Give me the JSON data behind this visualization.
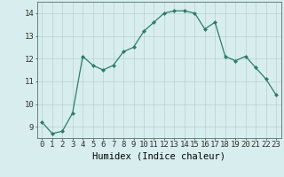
{
  "x": [
    0,
    1,
    2,
    3,
    4,
    5,
    6,
    7,
    8,
    9,
    10,
    11,
    12,
    13,
    14,
    15,
    16,
    17,
    18,
    19,
    20,
    21,
    22,
    23
  ],
  "y": [
    9.2,
    8.7,
    8.8,
    9.6,
    12.1,
    11.7,
    11.5,
    11.7,
    12.3,
    12.5,
    13.2,
    13.6,
    14.0,
    14.1,
    14.1,
    14.0,
    13.3,
    13.6,
    12.1,
    11.9,
    12.1,
    11.6,
    11.1,
    10.4
  ],
  "line_color": "#2e7b6e",
  "marker_color": "#2e7b6e",
  "bg_color": "#d8eeee",
  "grid_color": "#b8d0d0",
  "xlabel": "Humidex (Indice chaleur)",
  "ylim": [
    8.5,
    14.5
  ],
  "xlim": [
    -0.5,
    23.5
  ],
  "yticks": [
    9,
    10,
    11,
    12,
    13,
    14
  ],
  "xticks": [
    0,
    1,
    2,
    3,
    4,
    5,
    6,
    7,
    8,
    9,
    10,
    11,
    12,
    13,
    14,
    15,
    16,
    17,
    18,
    19,
    20,
    21,
    22,
    23
  ],
  "fontsize_axis": 6.5,
  "fontsize_label": 7.5
}
